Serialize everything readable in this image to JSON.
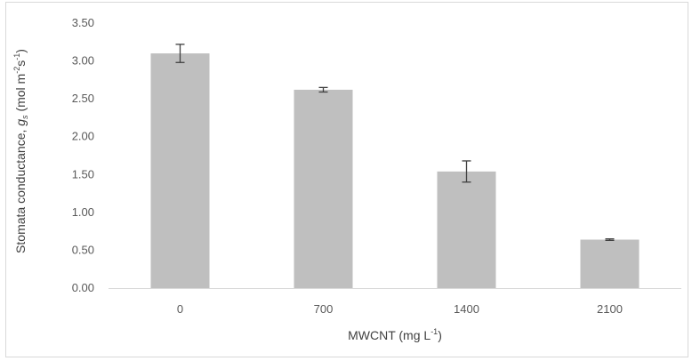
{
  "chart_data": {
    "type": "bar",
    "title": "",
    "categories": [
      "0",
      "700",
      "1400",
      "2100"
    ],
    "values": [
      3.1,
      2.62,
      1.54,
      0.64
    ],
    "error": [
      0.12,
      0.03,
      0.14,
      0.01
    ],
    "ylim": [
      0,
      3.5
    ],
    "yticks": [
      "0.00",
      "0.50",
      "1.00",
      "1.50",
      "2.00",
      "2.50",
      "3.00",
      "3.50"
    ],
    "xlabel": {
      "text": "MWCNT (mg L",
      "sup": "-1",
      "tail": ")"
    },
    "ylabel": {
      "prefix": "Stomata conductance, ",
      "var": "g",
      "var_sub": "s",
      "units_open": " (mol m",
      "sup1": "-2",
      "mid": "s",
      "sup2": "-1",
      "units_close": ")"
    },
    "grid": false,
    "legend": "none",
    "bar_color": "#bfbfbf",
    "error_color": "#404040"
  }
}
